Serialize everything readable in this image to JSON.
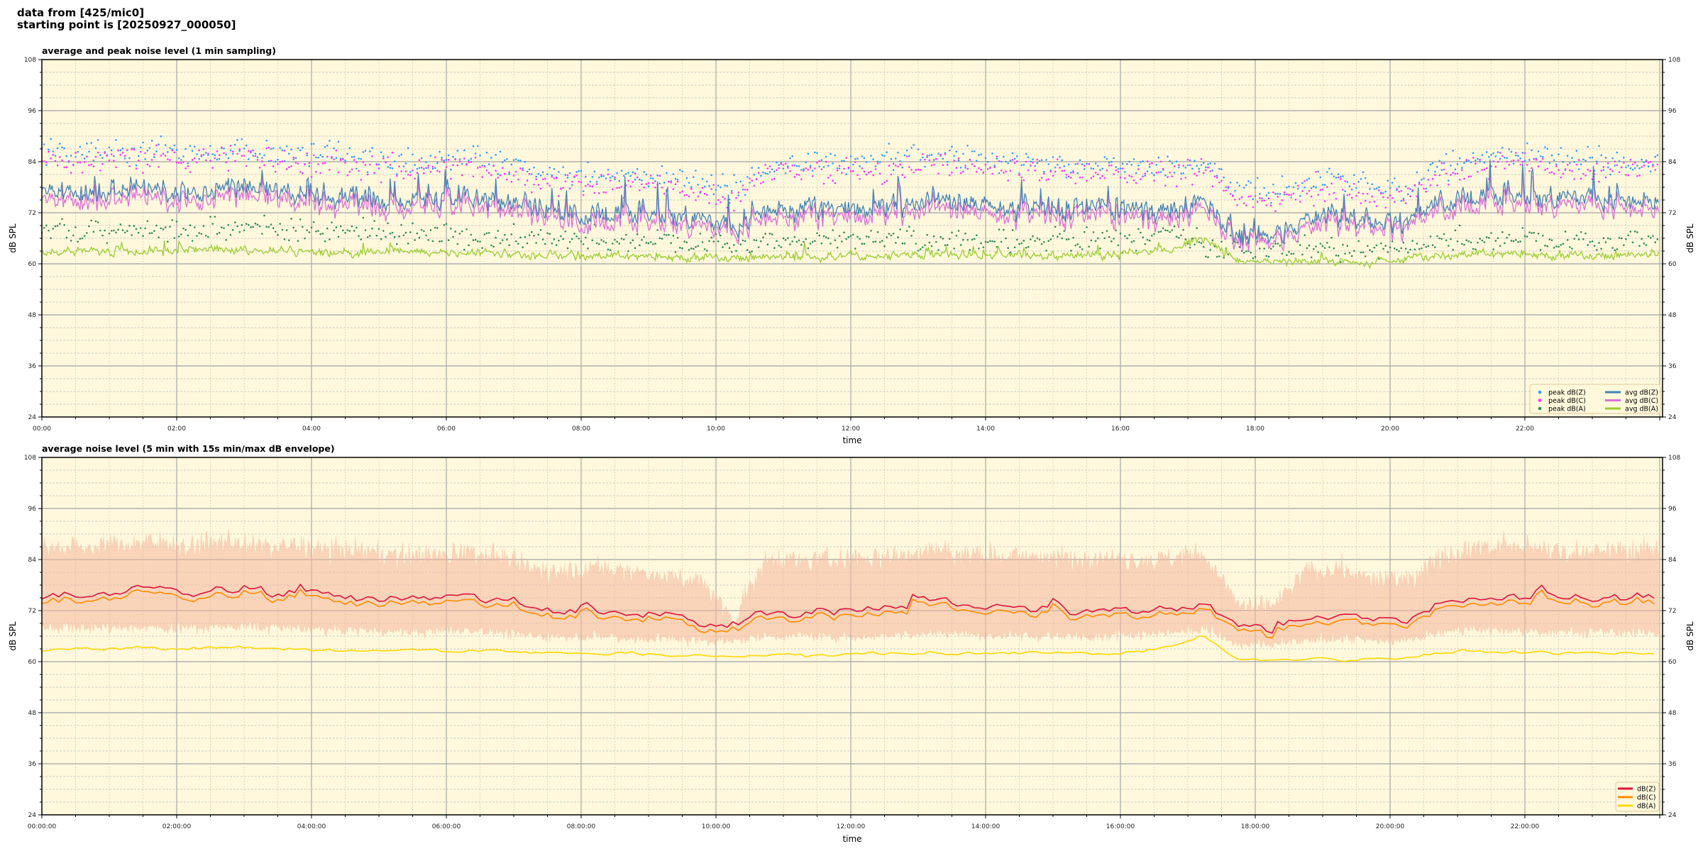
{
  "header": {
    "line1": "data from [425/mic0]",
    "line2": "starting point is [20250927_000050]"
  },
  "colors": {
    "plot_bg": "#fff8dc",
    "peak_z": "#3399ff",
    "peak_c": "#ff33ff",
    "peak_a": "#2e8b57",
    "avg_z": "#4682b4",
    "avg_c": "#da70d6",
    "avg_a": "#9acd32",
    "db_z": "#dc143c",
    "db_c": "#ff8c00",
    "db_a": "#ffd700",
    "envelope": "#f4b79c"
  },
  "chart_data": [
    {
      "type": "line",
      "title": "average and peak noise level (1 min sampling)",
      "xlabel": "time",
      "ylabel": "dB SPL",
      "ylabel_right": "dB SPL",
      "ylim": [
        24,
        108
      ],
      "xlim_hours": [
        0,
        24
      ],
      "y_ticks": [
        24,
        36,
        48,
        60,
        72,
        84,
        96,
        108
      ],
      "x_tick_labels": [
        "00:00",
        "02:00",
        "04:00",
        "06:00",
        "08:00",
        "10:00",
        "12:00",
        "14:00",
        "16:00",
        "18:00",
        "20:00",
        "22:00"
      ],
      "grid": true,
      "legend_position": "lower-right",
      "x_hours_sampled": "every 0.5 h (approx. levels; 1-min samples fluctuate around these)",
      "series": [
        {
          "name": "peak dB(Z)",
          "kind": "scatter",
          "values": [
            86,
            86,
            87,
            87,
            86,
            87,
            86,
            86,
            85,
            85,
            84,
            84,
            85,
            84,
            82,
            81,
            81,
            81,
            80,
            79,
            77,
            83,
            84,
            84,
            84,
            85,
            86,
            85,
            84,
            84,
            83,
            84,
            83,
            83,
            84,
            77,
            77,
            79,
            80,
            78,
            78,
            83,
            85,
            86,
            85,
            84,
            84,
            84
          ]
        },
        {
          "name": "peak dB(C)",
          "kind": "scatter",
          "values": [
            84,
            84,
            85,
            85,
            84,
            85,
            84,
            84,
            83,
            83,
            82,
            82,
            83,
            82,
            80,
            79,
            79,
            79,
            78,
            77,
            75,
            81,
            82,
            82,
            82,
            83,
            84,
            83,
            82,
            82,
            81,
            82,
            81,
            81,
            82,
            75,
            75,
            77,
            78,
            76,
            76,
            81,
            83,
            84,
            83,
            82,
            82,
            82
          ]
        },
        {
          "name": "peak dB(A)",
          "kind": "scatter",
          "values": [
            68,
            68,
            68,
            68,
            68,
            68.5,
            68,
            68,
            67.5,
            67.5,
            67,
            67,
            66.5,
            66,
            66,
            65.5,
            65.5,
            65,
            65,
            65,
            65,
            65,
            65,
            65.5,
            65.5,
            65.5,
            65.5,
            65.5,
            65.5,
            65.5,
            65.5,
            65.5,
            66,
            68,
            64.5,
            63.5,
            63.5,
            63.5,
            63.5,
            63.5,
            64,
            65,
            65.5,
            65.5,
            65.5,
            65.5,
            65.5,
            65.5
          ]
        },
        {
          "name": "avg dB(Z)",
          "kind": "line",
          "values": [
            77,
            77,
            77,
            78,
            77,
            78,
            77,
            77,
            76,
            76,
            75,
            75,
            76,
            75,
            73,
            72,
            72,
            72,
            71,
            70,
            68,
            73,
            73,
            73,
            73,
            74,
            75,
            74,
            73,
            73,
            72,
            73,
            73,
            73,
            74,
            67,
            67,
            71,
            72,
            70,
            70,
            75,
            76,
            76,
            75,
            75,
            75,
            75
          ]
        },
        {
          "name": "avg dB(C)",
          "kind": "line",
          "values": [
            75.5,
            75.5,
            75.5,
            76.5,
            75.5,
            76.5,
            75.5,
            75.5,
            74.5,
            74.5,
            73.5,
            73.5,
            74.5,
            73.5,
            71.5,
            70.5,
            70.5,
            70.5,
            69.5,
            68.5,
            67,
            71.5,
            71.5,
            71.5,
            71.5,
            72.5,
            73.5,
            72.5,
            71.5,
            71.5,
            70.5,
            71.5,
            71.5,
            71.5,
            72.5,
            66,
            66,
            69.5,
            70.5,
            69,
            69,
            73.5,
            74.5,
            74.5,
            73.5,
            73.5,
            73.5,
            73.5
          ]
        },
        {
          "name": "avg dB(A)",
          "kind": "line",
          "values": [
            63,
            63,
            63,
            63,
            63,
            63.5,
            63,
            63,
            62.5,
            62.5,
            63,
            62.5,
            62.5,
            62.5,
            62,
            62,
            62,
            62,
            61.5,
            61.5,
            61.5,
            61.5,
            61.5,
            61.5,
            62,
            62,
            62,
            62,
            62,
            62,
            62,
            62,
            62.5,
            63.5,
            66,
            60.5,
            60.5,
            60.5,
            60.5,
            60.5,
            61,
            62,
            62.5,
            62.5,
            62,
            62,
            62,
            62
          ]
        }
      ]
    },
    {
      "type": "line",
      "title": "average noise level (5 min with 15s min/max dB envelope)",
      "xlabel": "time",
      "ylabel": "dB SPL",
      "ylabel_right": "dB SPL",
      "ylim": [
        24,
        108
      ],
      "xlim_hours": [
        0,
        24
      ],
      "y_ticks": [
        24,
        36,
        48,
        60,
        72,
        84,
        96,
        108
      ],
      "x_tick_labels": [
        "00:00:00",
        "02:00:00",
        "04:00:00",
        "06:00:00",
        "08:00:00",
        "10:00:00",
        "12:00:00",
        "14:00:00",
        "16:00:00",
        "18:00:00",
        "20:00:00",
        "22:00:00"
      ],
      "grid": true,
      "legend_position": "lower-right",
      "series": [
        {
          "name": "dB(Z)",
          "values": [
            76,
            76,
            76.5,
            77,
            76,
            77,
            76.5,
            76,
            75.5,
            75,
            75,
            75,
            76,
            75,
            72.5,
            71.5,
            72,
            71.5,
            71,
            69.5,
            69,
            72,
            72,
            72,
            72,
            73,
            74,
            73.5,
            72.5,
            72.5,
            72,
            72.5,
            72.5,
            72.5,
            73.5,
            68,
            67.5,
            70,
            71.5,
            70,
            70,
            74,
            75,
            75.5,
            74.5,
            74.5,
            75,
            75
          ]
        },
        {
          "name": "dB(C)",
          "values": [
            75,
            75,
            75.5,
            76,
            75,
            76,
            75.5,
            75,
            74.5,
            74,
            74,
            74,
            75,
            74,
            71.5,
            70.5,
            71,
            70.5,
            70,
            68.5,
            68,
            71,
            71,
            71,
            71,
            72,
            73,
            72.5,
            71.5,
            71.5,
            71,
            71.5,
            71.5,
            71.5,
            72.5,
            67,
            66.5,
            69,
            70.5,
            69,
            69,
            73,
            74,
            74.5,
            73.5,
            73.5,
            74,
            74
          ]
        },
        {
          "name": "dB(A)",
          "values": [
            63,
            63,
            63,
            63,
            63,
            63.5,
            63,
            63,
            62.5,
            62.5,
            63,
            62.5,
            62.5,
            62.5,
            62,
            62,
            62,
            62,
            61.5,
            61.5,
            61.5,
            61.5,
            61.5,
            61.5,
            62,
            62,
            62,
            62,
            62,
            62,
            62,
            62,
            62.5,
            63.5,
            66,
            60.5,
            60.5,
            60.5,
            60.5,
            60.5,
            61,
            62,
            62.5,
            62.5,
            62,
            62,
            62,
            62
          ]
        },
        {
          "name": "envelope max",
          "values": [
            87,
            87,
            88,
            88,
            87,
            88,
            87,
            87,
            86,
            86,
            85,
            85,
            86,
            85,
            82,
            81,
            82,
            81,
            80,
            79,
            70,
            84,
            84,
            84,
            84,
            85,
            86,
            85,
            85,
            85,
            84,
            85,
            84,
            84,
            85,
            73,
            73,
            81,
            82,
            79,
            79,
            85,
            87,
            87,
            86,
            86,
            86,
            86
          ]
        },
        {
          "name": "envelope min",
          "values": [
            68,
            68,
            68,
            68,
            68,
            68.5,
            68,
            68,
            67.5,
            67.5,
            67,
            67,
            67.5,
            67,
            66,
            66,
            66,
            65.5,
            65.5,
            65,
            65,
            66,
            66,
            66,
            66,
            66.5,
            67,
            66.5,
            66,
            66,
            66,
            66,
            66.5,
            67,
            68,
            64,
            64,
            65,
            65.5,
            65,
            65,
            67,
            67.5,
            67.5,
            67,
            67,
            67,
            67
          ]
        }
      ]
    }
  ]
}
